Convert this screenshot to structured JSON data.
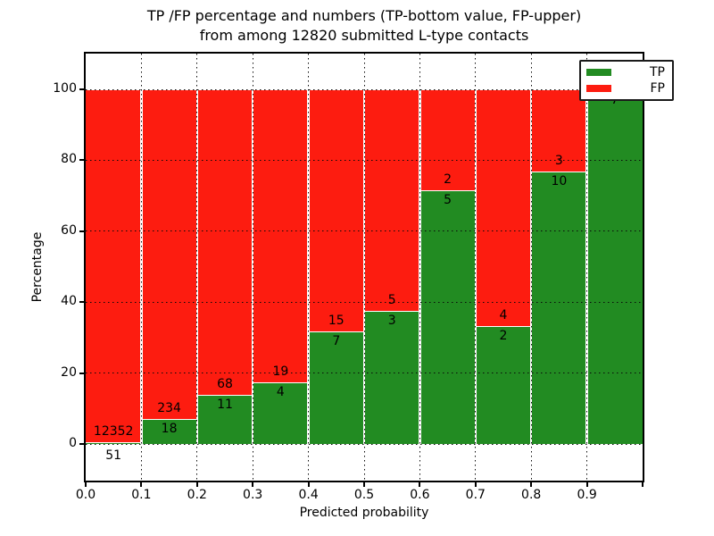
{
  "title_line1": "TP /FP percentage and numbers (TP-bottom value, FP-upper)",
  "title_line2": "from among 12820 submitted L-type contacts",
  "chart_data": {
    "type": "bar",
    "stacked": true,
    "title": "TP /FP percentage and numbers (TP-bottom value, FP-upper) from among 12820 submitted L-type contacts",
    "xlabel": "Predicted probability",
    "ylabel": "Percentage",
    "xlim": [
      0.0,
      1.0
    ],
    "ylim": [
      -10,
      110
    ],
    "grid": "dotted",
    "legend_position": "upper right",
    "x_tick_labels": [
      "0.0",
      "0.1",
      "0.2",
      "0.3",
      "0.4",
      "0.5",
      "0.6",
      "0.7",
      "0.8",
      "0.9"
    ],
    "y_tick_labels": [
      "0",
      "20",
      "40",
      "60",
      "80",
      "100"
    ],
    "y_tick_values": [
      0,
      20,
      40,
      60,
      80,
      100
    ],
    "bin_width": 0.1,
    "series": [
      {
        "name": "TP",
        "role": "bottom",
        "counts": [
          51,
          18,
          11,
          4,
          7,
          3,
          5,
          2,
          10,
          7
        ]
      },
      {
        "name": "FP",
        "role": "top",
        "counts": [
          12352,
          234,
          68,
          19,
          15,
          5,
          2,
          4,
          3,
          0
        ]
      }
    ],
    "bins": [
      {
        "x_start": 0.0,
        "tp": 51,
        "fp": 12352,
        "tp_pct": 0.41,
        "fp_pct": 99.59
      },
      {
        "x_start": 0.1,
        "tp": 18,
        "fp": 234,
        "tp_pct": 7.14,
        "fp_pct": 92.86
      },
      {
        "x_start": 0.2,
        "tp": 11,
        "fp": 68,
        "tp_pct": 13.92,
        "fp_pct": 86.08
      },
      {
        "x_start": 0.3,
        "tp": 4,
        "fp": 19,
        "tp_pct": 17.39,
        "fp_pct": 82.61
      },
      {
        "x_start": 0.4,
        "tp": 7,
        "fp": 15,
        "tp_pct": 31.82,
        "fp_pct": 68.18
      },
      {
        "x_start": 0.5,
        "tp": 3,
        "fp": 5,
        "tp_pct": 37.5,
        "fp_pct": 62.5
      },
      {
        "x_start": 0.6,
        "tp": 5,
        "fp": 2,
        "tp_pct": 71.43,
        "fp_pct": 28.57
      },
      {
        "x_start": 0.7,
        "tp": 2,
        "fp": 4,
        "tp_pct": 33.33,
        "fp_pct": 66.67
      },
      {
        "x_start": 0.8,
        "tp": 10,
        "fp": 3,
        "tp_pct": 76.92,
        "fp_pct": 23.08
      },
      {
        "x_start": 0.9,
        "tp": 7,
        "fp": 0,
        "tp_pct": 100,
        "fp_pct": 0
      }
    ],
    "legend": [
      {
        "label": "TP",
        "color": "#228b22"
      },
      {
        "label": "FP",
        "color": "#fd1c10"
      }
    ],
    "colors": {
      "tp": "#228b22",
      "fp": "#fd1c10"
    }
  }
}
